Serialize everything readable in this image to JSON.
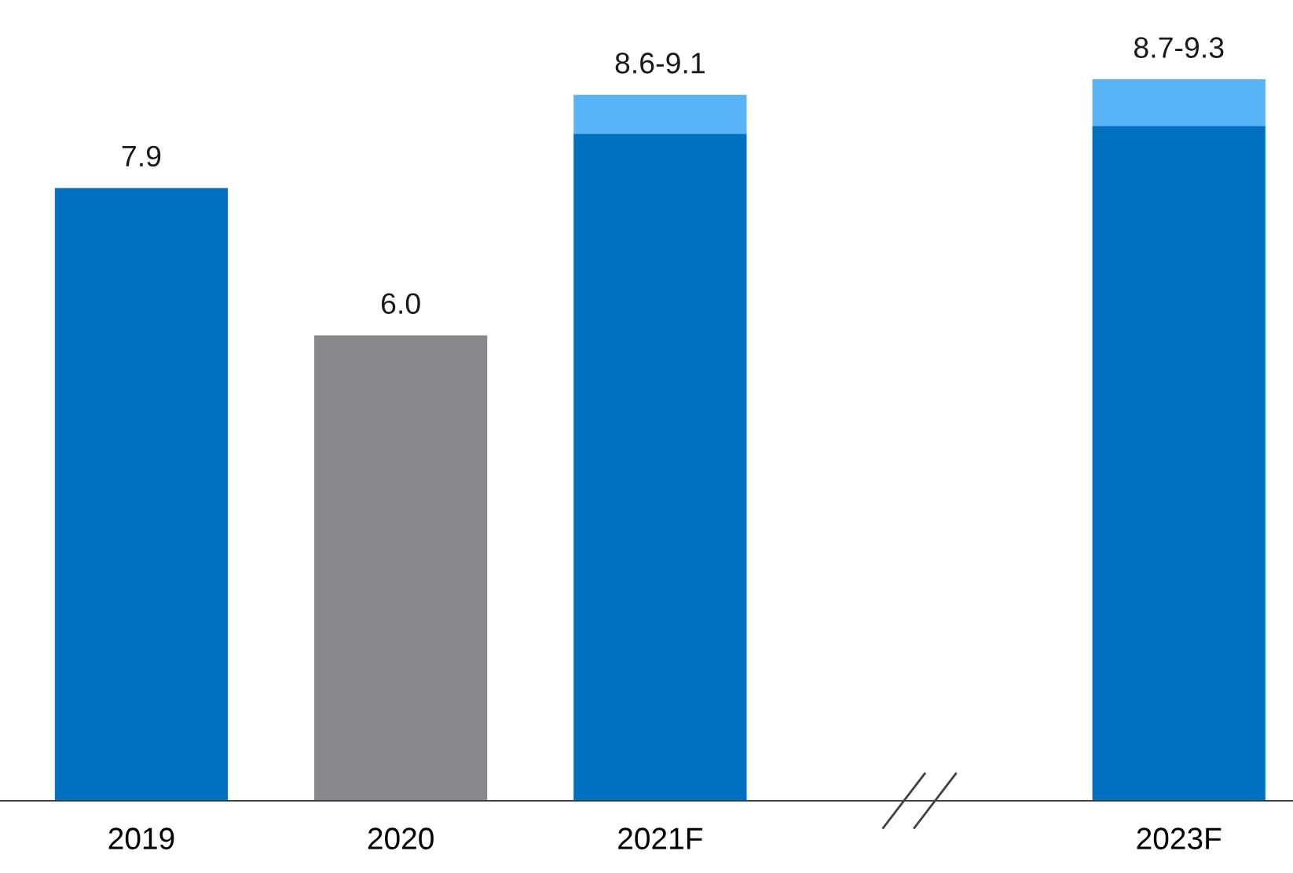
{
  "chart_data": {
    "type": "bar",
    "stacked": true,
    "categories": [
      "2019",
      "2020",
      "2021F",
      null,
      "2023F"
    ],
    "series": [
      {
        "colors": [
          "#0070c0",
          "#87898c",
          "#0070c0",
          null,
          "#0070c0"
        ],
        "values": [
          7.9,
          6.0,
          8.6,
          null,
          8.7
        ],
        "value_labels": [
          "7.9",
          "6.0",
          null,
          null,
          null
        ]
      },
      {
        "colors": [
          null,
          null,
          "#59b4f7",
          null,
          "#59b4f7"
        ],
        "values": [
          null,
          null,
          0.5,
          null,
          0.6
        ],
        "value_labels": [
          null,
          null,
          "8.6-9.1",
          null,
          "8.7-9.3"
        ]
      }
    ],
    "grid": false,
    "legend": false
  }
}
